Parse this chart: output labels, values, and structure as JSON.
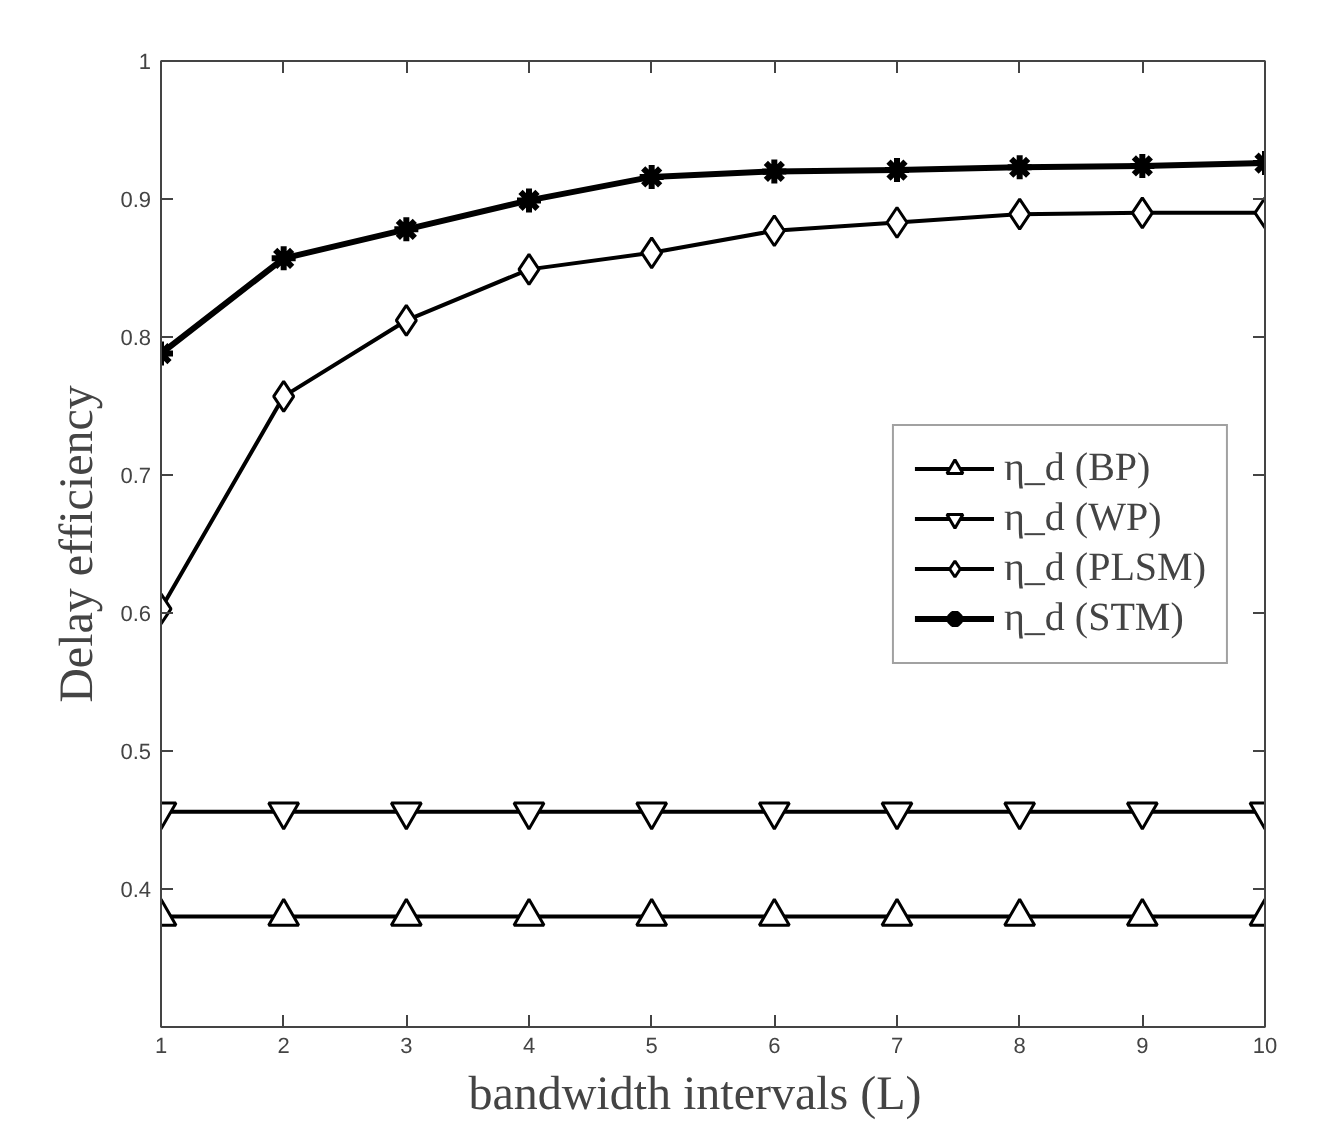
{
  "chart_data": {
    "type": "line",
    "xlabel": "bandwidth intervals    (L)",
    "ylabel": "Delay efficiency",
    "x": [
      1,
      2,
      3,
      4,
      5,
      6,
      7,
      8,
      9,
      10
    ],
    "xlim": [
      1,
      10
    ],
    "xticks": [
      1,
      2,
      3,
      4,
      5,
      6,
      7,
      8,
      9,
      10
    ],
    "ylim": [
      0.3,
      1
    ],
    "yticks": [
      0.4,
      0.5,
      0.6,
      0.7,
      0.8,
      0.9,
      1
    ],
    "grid": false,
    "legend": "right",
    "line_style": "solid",
    "series": [
      {
        "name": "η_d (BP)",
        "color": "#000000",
        "marker": "triangle",
        "values": [
          0.38,
          0.38,
          0.38,
          0.38,
          0.38,
          0.38,
          0.38,
          0.38,
          0.38,
          0.38
        ]
      },
      {
        "name": "η_d (WP)",
        "color": "#000000",
        "marker": "triangle",
        "values": [
          0.456,
          0.456,
          0.456,
          0.456,
          0.456,
          0.456,
          0.456,
          0.456,
          0.456,
          0.456
        ]
      },
      {
        "name": "η_d (PLSM)",
        "color": "#000000",
        "marker": "diamond",
        "values": [
          0.603,
          0.757,
          0.812,
          0.849,
          0.861,
          0.877,
          0.883,
          0.889,
          0.89,
          0.89
        ]
      },
      {
        "name": "η_d (STM)",
        "color": "#000000",
        "marker": "cross",
        "values": [
          0.788,
          0.857,
          0.878,
          0.899,
          0.916,
          0.92,
          0.921,
          0.923,
          0.924,
          0.926
        ]
      }
    ]
  }
}
